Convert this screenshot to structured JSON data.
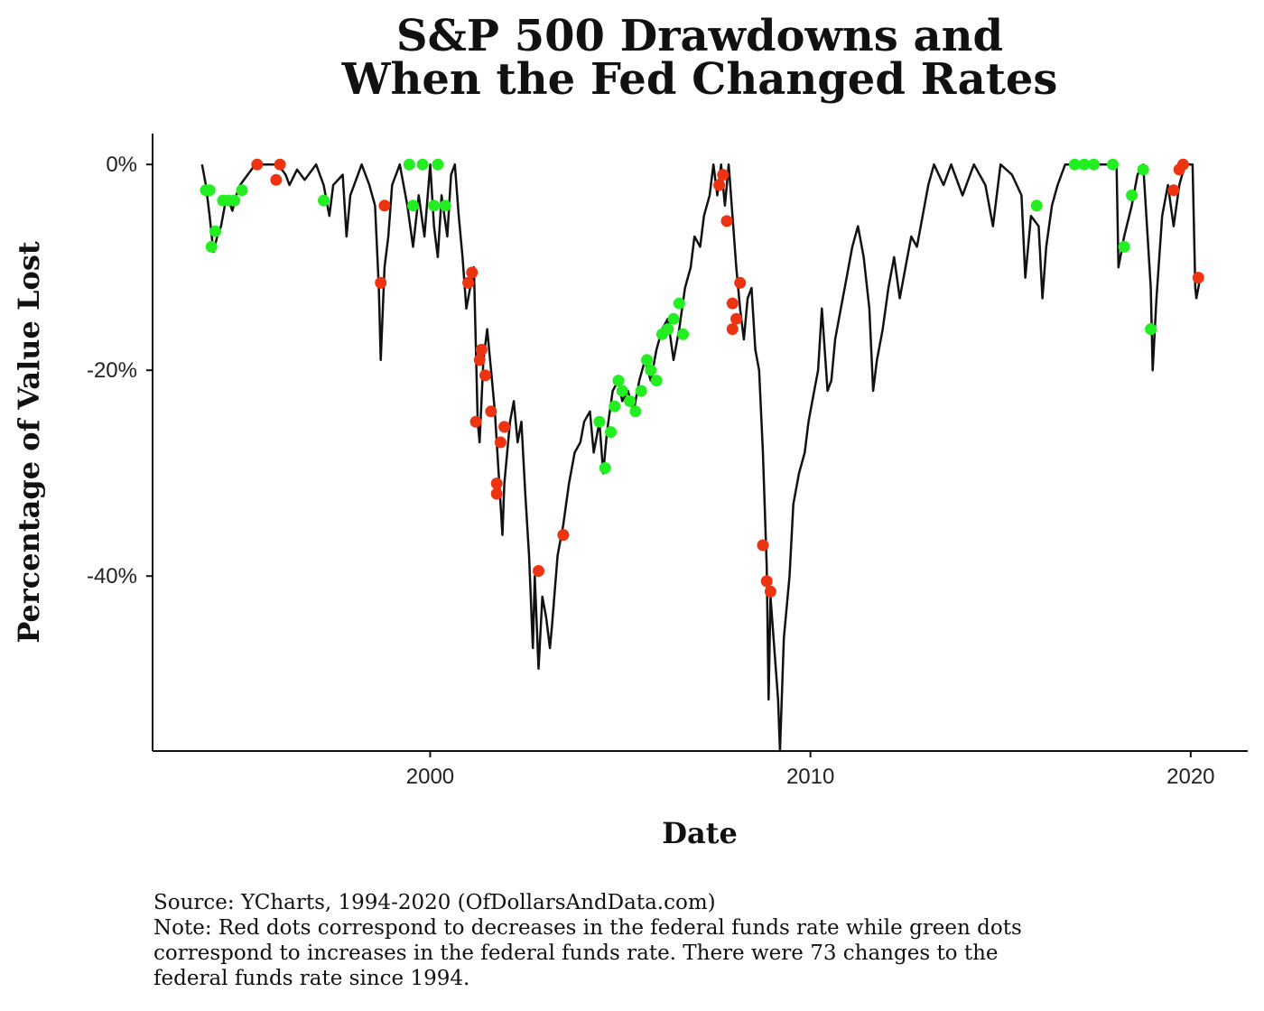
{
  "chart_data": {
    "type": "line",
    "title_lines": [
      "S&P 500 Drawdowns and",
      "When the Fed Changed Rates"
    ],
    "xlabel": "Date",
    "ylabel": "Percentage of Value Lost",
    "xlim": [
      1992.7,
      2021.5
    ],
    "ylim": [
      -57,
      3
    ],
    "x_ticks": [
      {
        "value": 2000,
        "label": "2000"
      },
      {
        "value": 2010,
        "label": "2010"
      },
      {
        "value": 2020,
        "label": "2020"
      }
    ],
    "y_ticks": [
      {
        "value": 0,
        "label": "0%"
      },
      {
        "value": -20,
        "label": "-20%"
      },
      {
        "value": -40,
        "label": "-40%"
      }
    ],
    "grid": false,
    "legend": "none",
    "line_color": "#111111",
    "series": [
      {
        "type": "line",
        "points": [
          [
            1994.0,
            0
          ],
          [
            1994.1,
            -2
          ],
          [
            1994.2,
            -5
          ],
          [
            1994.3,
            -8.5
          ],
          [
            1994.4,
            -7
          ],
          [
            1994.5,
            -6
          ],
          [
            1994.6,
            -4
          ],
          [
            1994.7,
            -3.5
          ],
          [
            1994.8,
            -4.5
          ],
          [
            1994.9,
            -3
          ],
          [
            1995.0,
            -2
          ],
          [
            1995.2,
            -1
          ],
          [
            1995.4,
            0
          ],
          [
            1995.8,
            0
          ],
          [
            1996.0,
            0
          ],
          [
            1996.2,
            -1
          ],
          [
            1996.3,
            -2
          ],
          [
            1996.5,
            -0.5
          ],
          [
            1996.7,
            -1.5
          ],
          [
            1997.0,
            0
          ],
          [
            1997.2,
            -2
          ],
          [
            1997.35,
            -5
          ],
          [
            1997.45,
            -2
          ],
          [
            1997.7,
            -1
          ],
          [
            1997.8,
            -7
          ],
          [
            1997.9,
            -3
          ],
          [
            1998.2,
            0
          ],
          [
            1998.4,
            -2
          ],
          [
            1998.55,
            -4
          ],
          [
            1998.65,
            -12
          ],
          [
            1998.7,
            -19
          ],
          [
            1998.8,
            -10
          ],
          [
            1998.9,
            -7
          ],
          [
            1999.0,
            -2
          ],
          [
            1999.2,
            0
          ],
          [
            1999.4,
            -4
          ],
          [
            1999.55,
            -8
          ],
          [
            1999.7,
            -3
          ],
          [
            1999.85,
            -7
          ],
          [
            2000.0,
            0
          ],
          [
            2000.1,
            -6
          ],
          [
            2000.2,
            -9
          ],
          [
            2000.3,
            -3
          ],
          [
            2000.45,
            -7
          ],
          [
            2000.55,
            -1
          ],
          [
            2000.65,
            0
          ],
          [
            2000.75,
            -5
          ],
          [
            2000.85,
            -9
          ],
          [
            2000.95,
            -14
          ],
          [
            2001.05,
            -12
          ],
          [
            2001.15,
            -10
          ],
          [
            2001.25,
            -25
          ],
          [
            2001.3,
            -27
          ],
          [
            2001.4,
            -19
          ],
          [
            2001.5,
            -16
          ],
          [
            2001.6,
            -20
          ],
          [
            2001.7,
            -24
          ],
          [
            2001.8,
            -30
          ],
          [
            2001.9,
            -36
          ],
          [
            2001.95,
            -31
          ],
          [
            2002.1,
            -25
          ],
          [
            2002.2,
            -23
          ],
          [
            2002.3,
            -27
          ],
          [
            2002.4,
            -25
          ],
          [
            2002.5,
            -32
          ],
          [
            2002.6,
            -38
          ],
          [
            2002.7,
            -47
          ],
          [
            2002.75,
            -40
          ],
          [
            2002.85,
            -49
          ],
          [
            2002.95,
            -42
          ],
          [
            2003.05,
            -44
          ],
          [
            2003.15,
            -47
          ],
          [
            2003.2,
            -45
          ],
          [
            2003.35,
            -38
          ],
          [
            2003.5,
            -35
          ],
          [
            2003.65,
            -31
          ],
          [
            2003.8,
            -28
          ],
          [
            2003.95,
            -27
          ],
          [
            2004.05,
            -25
          ],
          [
            2004.2,
            -24
          ],
          [
            2004.3,
            -28
          ],
          [
            2004.45,
            -25
          ],
          [
            2004.55,
            -30
          ],
          [
            2004.65,
            -26
          ],
          [
            2004.8,
            -22
          ],
          [
            2004.95,
            -21
          ],
          [
            2005.05,
            -23
          ],
          [
            2005.2,
            -22
          ],
          [
            2005.35,
            -24
          ],
          [
            2005.5,
            -21
          ],
          [
            2005.65,
            -19
          ],
          [
            2005.8,
            -21
          ],
          [
            2005.95,
            -18
          ],
          [
            2006.1,
            -16
          ],
          [
            2006.25,
            -15
          ],
          [
            2006.4,
            -19
          ],
          [
            2006.55,
            -16
          ],
          [
            2006.7,
            -12
          ],
          [
            2006.85,
            -10
          ],
          [
            2006.95,
            -7
          ],
          [
            2007.1,
            -8
          ],
          [
            2007.2,
            -5
          ],
          [
            2007.35,
            -3
          ],
          [
            2007.45,
            0
          ],
          [
            2007.55,
            -3
          ],
          [
            2007.65,
            0
          ],
          [
            2007.75,
            -4
          ],
          [
            2007.85,
            0
          ],
          [
            2007.95,
            -5
          ],
          [
            2008.05,
            -10
          ],
          [
            2008.15,
            -14
          ],
          [
            2008.25,
            -17
          ],
          [
            2008.35,
            -13
          ],
          [
            2008.45,
            -12
          ],
          [
            2008.55,
            -18
          ],
          [
            2008.65,
            -20
          ],
          [
            2008.75,
            -28
          ],
          [
            2008.85,
            -39
          ],
          [
            2008.9,
            -52
          ],
          [
            2008.95,
            -42
          ],
          [
            2009.05,
            -47
          ],
          [
            2009.15,
            -52
          ],
          [
            2009.2,
            -57
          ],
          [
            2009.3,
            -46
          ],
          [
            2009.45,
            -40
          ],
          [
            2009.55,
            -33
          ],
          [
            2009.7,
            -30
          ],
          [
            2009.85,
            -28
          ],
          [
            2009.95,
            -25
          ],
          [
            2010.05,
            -23
          ],
          [
            2010.2,
            -20
          ],
          [
            2010.3,
            -14
          ],
          [
            2010.45,
            -22
          ],
          [
            2010.55,
            -21
          ],
          [
            2010.65,
            -17
          ],
          [
            2010.8,
            -14
          ],
          [
            2010.95,
            -11
          ],
          [
            2011.1,
            -8
          ],
          [
            2011.25,
            -6
          ],
          [
            2011.4,
            -9
          ],
          [
            2011.55,
            -14
          ],
          [
            2011.65,
            -22
          ],
          [
            2011.75,
            -19
          ],
          [
            2011.9,
            -16
          ],
          [
            2012.05,
            -12
          ],
          [
            2012.2,
            -9
          ],
          [
            2012.35,
            -13
          ],
          [
            2012.5,
            -10
          ],
          [
            2012.65,
            -7
          ],
          [
            2012.8,
            -8
          ],
          [
            2012.95,
            -5
          ],
          [
            2013.1,
            -2
          ],
          [
            2013.25,
            0
          ],
          [
            2013.5,
            -2
          ],
          [
            2013.7,
            0
          ],
          [
            2014.0,
            -3
          ],
          [
            2014.3,
            0
          ],
          [
            2014.6,
            -2
          ],
          [
            2014.8,
            -6
          ],
          [
            2015.0,
            0
          ],
          [
            2015.3,
            -1
          ],
          [
            2015.55,
            -3
          ],
          [
            2015.65,
            -11
          ],
          [
            2015.8,
            -5
          ],
          [
            2016.0,
            -6
          ],
          [
            2016.1,
            -13
          ],
          [
            2016.2,
            -8
          ],
          [
            2016.35,
            -4
          ],
          [
            2016.5,
            -2
          ],
          [
            2016.7,
            0
          ],
          [
            2017.0,
            0
          ],
          [
            2017.5,
            0
          ],
          [
            2017.8,
            0
          ],
          [
            2018.05,
            0
          ],
          [
            2018.1,
            -10
          ],
          [
            2018.25,
            -7
          ],
          [
            2018.45,
            -4
          ],
          [
            2018.6,
            -1
          ],
          [
            2018.75,
            0
          ],
          [
            2018.85,
            -6
          ],
          [
            2018.95,
            -12
          ],
          [
            2019.0,
            -20
          ],
          [
            2019.1,
            -13
          ],
          [
            2019.25,
            -5
          ],
          [
            2019.4,
            -2
          ],
          [
            2019.55,
            -6
          ],
          [
            2019.7,
            -2
          ],
          [
            2019.85,
            0
          ],
          [
            2020.05,
            0
          ],
          [
            2020.12,
            -12
          ],
          [
            2020.15,
            -13
          ],
          [
            2020.25,
            -11
          ]
        ]
      }
    ],
    "rate_decreases": {
      "color": "#ee3311",
      "points": [
        [
          1995.45,
          0
        ],
        [
          1995.95,
          -1.5
        ],
        [
          1996.05,
          0
        ],
        [
          1998.7,
          -11.5
        ],
        [
          1998.8,
          -4
        ],
        [
          2001.0,
          -11.5
        ],
        [
          2001.1,
          -10.5
        ],
        [
          2001.2,
          -25
        ],
        [
          2001.3,
          -19
        ],
        [
          2001.35,
          -18
        ],
        [
          2001.45,
          -20.5
        ],
        [
          2001.6,
          -24
        ],
        [
          2001.75,
          -31
        ],
        [
          2001.75,
          -32
        ],
        [
          2001.85,
          -27
        ],
        [
          2001.95,
          -25.5
        ],
        [
          2002.85,
          -39.5
        ],
        [
          2003.5,
          -36
        ],
        [
          2007.6,
          -2
        ],
        [
          2007.7,
          -1
        ],
        [
          2007.8,
          -5.5
        ],
        [
          2007.95,
          -16
        ],
        [
          2007.95,
          -13.5
        ],
        [
          2008.05,
          -15
        ],
        [
          2008.15,
          -11.5
        ],
        [
          2008.75,
          -37
        ],
        [
          2008.85,
          -40.5
        ],
        [
          2008.95,
          -41.5
        ],
        [
          2019.55,
          -2.5
        ],
        [
          2019.7,
          -0.5
        ],
        [
          2019.8,
          0
        ],
        [
          2020.2,
          -11
        ]
      ]
    },
    "rate_increases": {
      "color": "#22ee22",
      "points": [
        [
          1994.1,
          -2.5
        ],
        [
          1994.2,
          -2.5
        ],
        [
          1994.25,
          -8
        ],
        [
          1994.35,
          -6.5
        ],
        [
          1994.55,
          -3.5
        ],
        [
          1994.7,
          -3.5
        ],
        [
          1994.85,
          -3.5
        ],
        [
          1995.05,
          -2.5
        ],
        [
          1997.2,
          -3.5
        ],
        [
          1999.45,
          0
        ],
        [
          1999.55,
          -4
        ],
        [
          1999.8,
          0
        ],
        [
          2000.1,
          -4
        ],
        [
          2000.2,
          0
        ],
        [
          2000.4,
          -4
        ],
        [
          2004.45,
          -25
        ],
        [
          2004.6,
          -29.5
        ],
        [
          2004.75,
          -26
        ],
        [
          2004.85,
          -23.5
        ],
        [
          2004.95,
          -21
        ],
        [
          2005.05,
          -22
        ],
        [
          2005.25,
          -23
        ],
        [
          2005.4,
          -24
        ],
        [
          2005.55,
          -22
        ],
        [
          2005.7,
          -19
        ],
        [
          2005.8,
          -20
        ],
        [
          2005.95,
          -21
        ],
        [
          2006.1,
          -16.5
        ],
        [
          2006.25,
          -16
        ],
        [
          2006.4,
          -15
        ],
        [
          2006.55,
          -13.5
        ],
        [
          2006.65,
          -16.5
        ],
        [
          2015.95,
          -4
        ],
        [
          2016.95,
          0
        ],
        [
          2017.2,
          0
        ],
        [
          2017.45,
          0
        ],
        [
          2017.95,
          0
        ],
        [
          2018.25,
          -8
        ],
        [
          2018.45,
          -3
        ],
        [
          2018.75,
          -0.5
        ],
        [
          2018.95,
          -16
        ]
      ]
    },
    "notes": [
      "Source:  YCharts, 1994-2020 (OfDollarsAndData.com)",
      "Note: Red dots correspond to decreases in the federal funds rate while green dots",
      "correspond to increases in the federal funds rate. There were 73 changes to the",
      "federal funds rate since 1994."
    ]
  }
}
